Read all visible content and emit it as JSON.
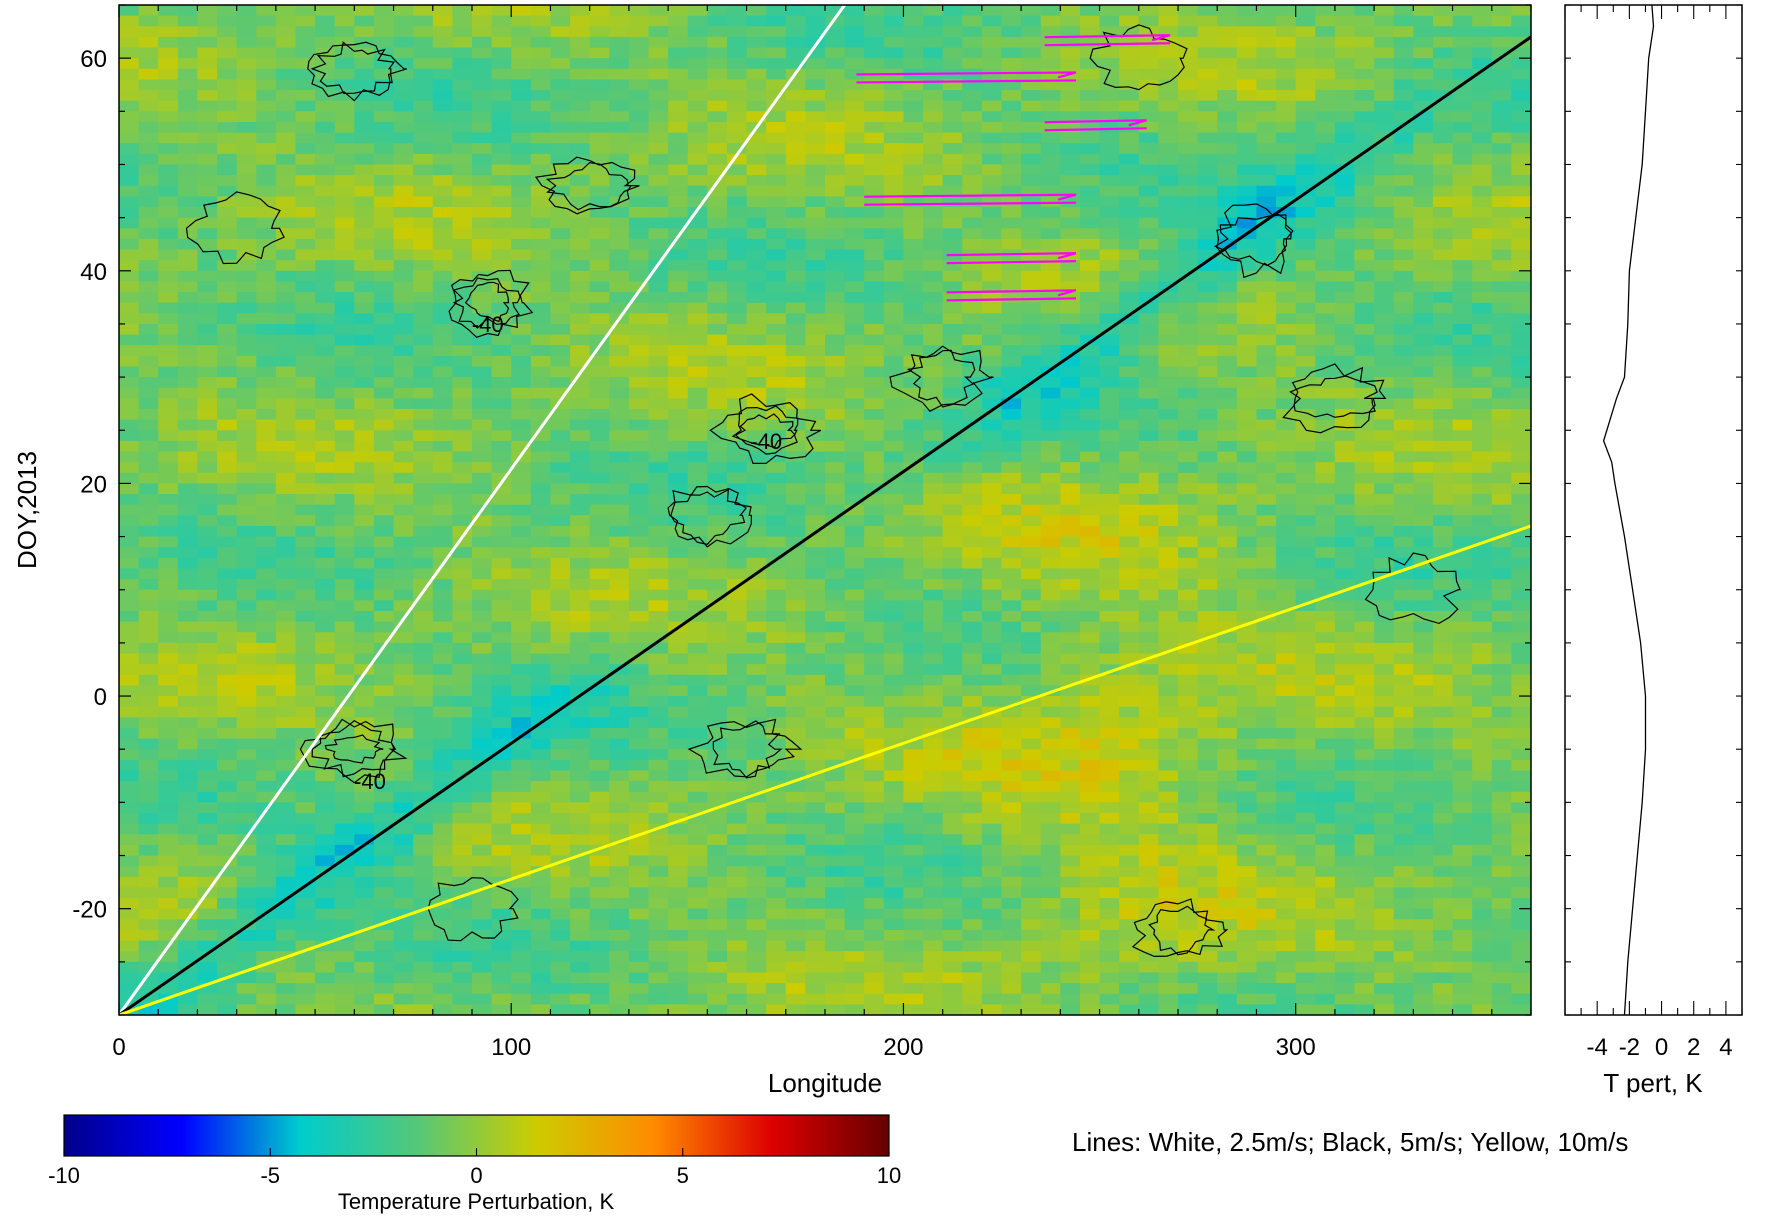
{
  "chart_data": [
    {
      "type": "heatmap",
      "title": "",
      "xlabel": "Longitude",
      "ylabel": "DOY,2013",
      "xlim": [
        0,
        360
      ],
      "ylim": [
        -30,
        65
      ],
      "xticks": [
        0,
        100,
        200,
        300
      ],
      "yticks": [
        -20,
        0,
        20,
        40,
        60
      ],
      "colorbar": {
        "label": "Temperature Perturbation, K",
        "range": [
          -10,
          10
        ],
        "ticks": [
          -10,
          -5,
          0,
          5,
          10
        ],
        "colors": [
          "#00008b",
          "#0000ff",
          "#00cccc",
          "#55c878",
          "#cccc00",
          "#ff8c00",
          "#dd0000",
          "#660000"
        ]
      },
      "contour_labels": [
        {
          "text": "-40",
          "x": 94,
          "y": 35
        },
        {
          "text": "-40",
          "x": 165,
          "y": 24
        },
        {
          "text": "-40",
          "x": 64,
          "y": -8
        }
      ],
      "phase_lines": [
        {
          "color": "#ffffff",
          "speed": "2.5m/s",
          "x": [
            0,
            185
          ],
          "y": [
            -30,
            65
          ]
        },
        {
          "color": "#000000",
          "speed": "5m/s",
          "x": [
            0,
            360
          ],
          "y": [
            -30,
            62
          ]
        },
        {
          "color": "#ffff00",
          "speed": "10m/s",
          "x": [
            0,
            360
          ],
          "y": [
            -30,
            16
          ]
        }
      ],
      "wind_barbs": [
        {
          "doy": 61.5,
          "x0": 236,
          "x1": 268
        },
        {
          "doy": 58,
          "x0": 188,
          "x1": 244
        },
        {
          "doy": 53.5,
          "x0": 236,
          "x1": 262
        },
        {
          "doy": 46.5,
          "x0": 190,
          "x1": 244
        },
        {
          "doy": 41,
          "x0": 211,
          "x1": 244
        },
        {
          "doy": 37.5,
          "x0": 211,
          "x1": 244
        }
      ],
      "barb_color": "#ff00ff"
    },
    {
      "type": "line",
      "xlabel": "T pert, K",
      "xticks": [
        -4,
        -2,
        0,
        2,
        4
      ],
      "xlim": [
        -6,
        5
      ],
      "ylim": [
        -30,
        65
      ],
      "profile": {
        "doy": [
          -30,
          -25,
          -20,
          -15,
          -10,
          -5,
          0,
          5,
          10,
          15,
          20,
          22,
          24,
          26,
          28,
          30,
          35,
          40,
          45,
          50,
          55,
          60,
          63,
          65
        ],
        "t": [
          -2.3,
          -2.1,
          -1.8,
          -1.5,
          -1.2,
          -1.0,
          -1.0,
          -1.3,
          -1.8,
          -2.3,
          -2.9,
          -3.1,
          -3.6,
          -3.2,
          -2.8,
          -2.3,
          -2.1,
          -2.0,
          -1.6,
          -1.2,
          -1.0,
          -0.8,
          -0.5,
          -0.6
        ]
      }
    }
  ],
  "legend_note": "Lines: White, 2.5m/s; Black, 5m/s; Yellow, 10m/s"
}
